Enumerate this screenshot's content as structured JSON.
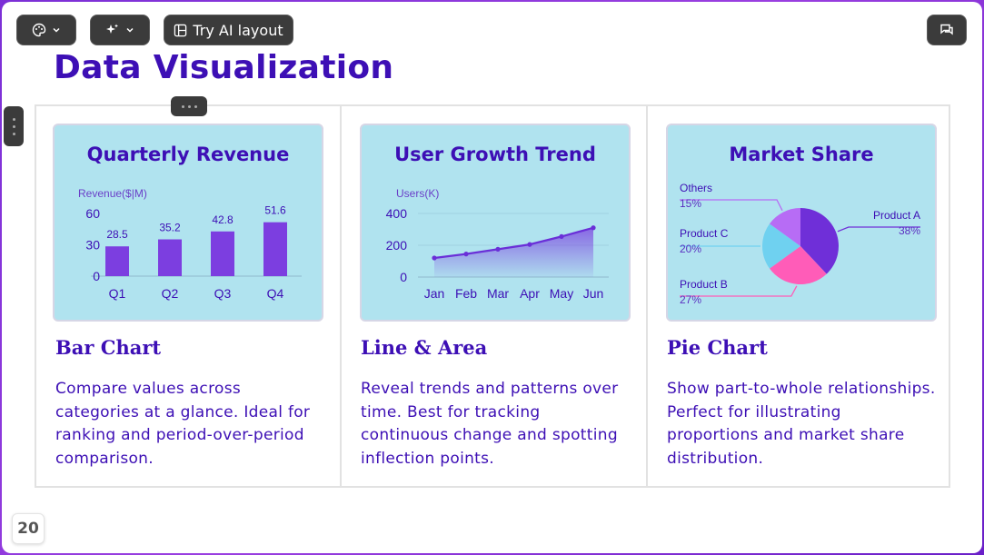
{
  "toolbar": {
    "theme_icon": "palette-icon",
    "ai_icon": "sparkle-icon",
    "try_ai_label": "Try AI layout",
    "comment_icon": "comment-icon"
  },
  "slide": {
    "title": "Data Visualization",
    "page_number": "20"
  },
  "cells": [
    {
      "heading": "Bar Chart",
      "description": "Compare values across categories at a glance. Ideal for ranking and period-over-period comparison."
    },
    {
      "heading": "Line & Area",
      "description": "Reveal trends and patterns over time. Best for tracking continuous change and spotting inflection points."
    },
    {
      "heading": "Pie Chart",
      "description": "Show part-to-whole relationships. Perfect for illustrating proportions and market share distribution."
    }
  ],
  "colors": {
    "brand_purple": "#3d0fb5",
    "bar_purple": "#7c3ee0",
    "card_bg": "#b0e3ef"
  },
  "chart_data": [
    {
      "type": "bar",
      "title": "Quarterly Revenue",
      "ylabel": "Revenue($|M)",
      "categories": [
        "Q1",
        "Q2",
        "Q3",
        "Q4"
      ],
      "values": [
        28.5,
        35.2,
        42.8,
        51.6
      ],
      "yticks": [
        0,
        30,
        60
      ],
      "ylim": [
        0,
        60
      ]
    },
    {
      "type": "area",
      "title": "User Growth Trend",
      "ylabel": "Users(K)",
      "x": [
        "Jan",
        "Feb",
        "Mar",
        "Apr",
        "May",
        "Jun"
      ],
      "values": [
        120,
        145,
        175,
        205,
        255,
        310
      ],
      "yticks": [
        0,
        200,
        400
      ],
      "ylim": [
        0,
        400
      ]
    },
    {
      "type": "pie",
      "title": "Market Share",
      "slices": [
        {
          "name": "Product A",
          "value": 38,
          "label": "38%",
          "color": "#6f2fd8"
        },
        {
          "name": "Product B",
          "value": 27,
          "label": "27%",
          "color": "#ff5cb8"
        },
        {
          "name": "Product C",
          "value": 20,
          "label": "20%",
          "color": "#6fd1f0"
        },
        {
          "name": "Others",
          "value": 15,
          "label": "15%",
          "color": "#b76cf5"
        }
      ]
    }
  ]
}
